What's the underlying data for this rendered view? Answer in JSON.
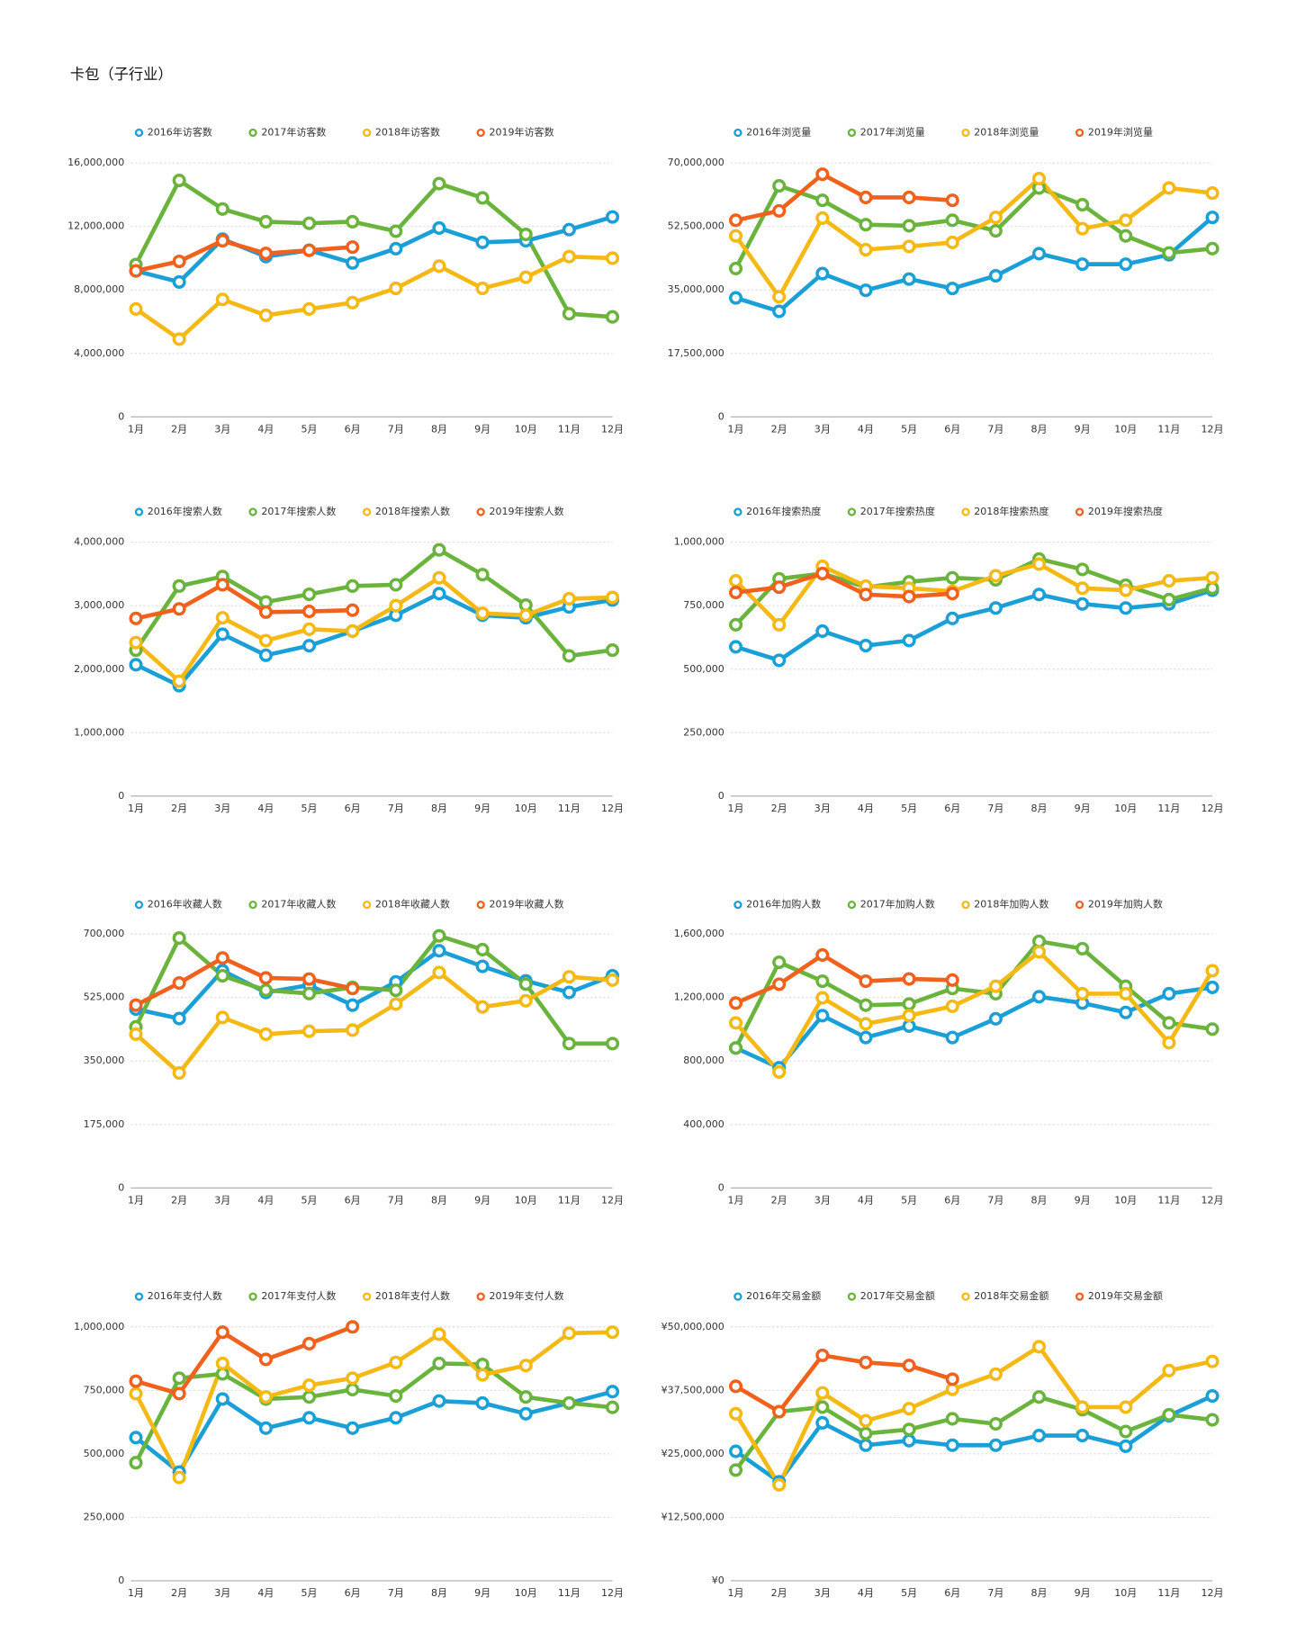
{
  "title": "卡包（子行业）",
  "chart_data": [
    {
      "type": "line",
      "categories": [
        "1月",
        "2月",
        "3月",
        "4月",
        "5月",
        "6月",
        "7月",
        "8月",
        "9月",
        "10月",
        "11月",
        "12月"
      ],
      "ylim": [
        0,
        16000000
      ],
      "yticks": [
        0,
        {
          "value": 4000000,
          "label": "4,000,000"
        },
        {
          "value": 8000000,
          "label": "8,000,000"
        },
        {
          "value": 12000000,
          "label": "12,000,000"
        },
        {
          "value": 16000000,
          "label": "16,000,000"
        }
      ],
      "grid": true,
      "series": [
        {
          "name": "2016年访客数",
          "color": "#1a9fd6",
          "values": [
            9200000,
            8500000,
            11200000,
            10100000,
            10500000,
            9700000,
            10600000,
            11900000,
            11000000,
            11100000,
            11800000,
            12600000
          ]
        },
        {
          "name": "2017年访客数",
          "color": "#6ab43e",
          "values": [
            9600000,
            14900000,
            13100000,
            12300000,
            12200000,
            12300000,
            11700000,
            14700000,
            13800000,
            11500000,
            6500000,
            6300000
          ]
        },
        {
          "name": "2018年访客数",
          "color": "#f5b915",
          "values": [
            6800000,
            4900000,
            7400000,
            6400000,
            6800000,
            7200000,
            8100000,
            9500000,
            8100000,
            8800000,
            10100000,
            10000000
          ]
        },
        {
          "name": "2019年访客数",
          "color": "#f0611e",
          "values": [
            9200000,
            9800000,
            11100000,
            10300000,
            10500000,
            10700000,
            null,
            null,
            null,
            null,
            null,
            null
          ]
        }
      ]
    },
    {
      "type": "line",
      "categories": [
        "1月",
        "2月",
        "3月",
        "4月",
        "5月",
        "6月",
        "7月",
        "8月",
        "9月",
        "10月",
        "11月",
        "12月"
      ],
      "ylim": [
        0,
        70000000
      ],
      "yticks": [
        0,
        {
          "value": 17500000,
          "label": "17,500,000"
        },
        {
          "value": 35000000,
          "label": "35,000,000"
        },
        {
          "value": 52500000,
          "label": "52,500,000"
        },
        {
          "value": 70000000,
          "label": "70,000,000"
        }
      ],
      "grid": true,
      "series": [
        {
          "name": "2016年浏览量",
          "color": "#1a9fd6",
          "values": [
            32800000,
            29100000,
            39500000,
            34900000,
            38000000,
            35400000,
            38900000,
            45000000,
            42100000,
            42100000,
            44700000,
            55000000
          ]
        },
        {
          "name": "2017年浏览量",
          "color": "#6ab43e",
          "values": [
            40900000,
            63700000,
            59700000,
            53000000,
            52700000,
            54200000,
            51300000,
            63100000,
            58500000,
            49900000,
            45200000,
            46400000
          ]
        },
        {
          "name": "2018年浏览量",
          "color": "#f5b915",
          "values": [
            49900000,
            33100000,
            54800000,
            46100000,
            47000000,
            48100000,
            55000000,
            65700000,
            51900000,
            54200000,
            63100000,
            61700000
          ]
        },
        {
          "name": "2019年浏览量",
          "color": "#f0611e",
          "values": [
            54200000,
            56800000,
            66900000,
            60500000,
            60500000,
            59700000,
            null,
            null,
            null,
            null,
            null,
            null
          ]
        }
      ]
    },
    {
      "type": "line",
      "categories": [
        "1月",
        "2月",
        "3月",
        "4月",
        "5月",
        "6月",
        "7月",
        "8月",
        "9月",
        "10月",
        "11月",
        "12月"
      ],
      "ylim": [
        0,
        4000000
      ],
      "yticks": [
        0,
        {
          "value": 1000000,
          "label": "1,000,000"
        },
        {
          "value": 2000000,
          "label": "2,000,000"
        },
        {
          "value": 3000000,
          "label": "3,000,000"
        },
        {
          "value": 4000000,
          "label": "4,000,000"
        }
      ],
      "grid": true,
      "series": [
        {
          "name": "2016年搜索人数",
          "color": "#1a9fd6",
          "values": [
            2070000,
            1740000,
            2550000,
            2220000,
            2370000,
            2600000,
            2850000,
            3190000,
            2850000,
            2810000,
            2980000,
            3090000
          ]
        },
        {
          "name": "2017年搜索人数",
          "color": "#6ab43e",
          "values": [
            2300000,
            3310000,
            3460000,
            3060000,
            3180000,
            3310000,
            3330000,
            3880000,
            3490000,
            3010000,
            2210000,
            2300000
          ]
        },
        {
          "name": "2018年搜索人数",
          "color": "#f5b915",
          "values": [
            2420000,
            1810000,
            2810000,
            2450000,
            2630000,
            2600000,
            3000000,
            3440000,
            2880000,
            2850000,
            3110000,
            3130000
          ]
        },
        {
          "name": "2019年搜索人数",
          "color": "#f0611e",
          "values": [
            2800000,
            2950000,
            3330000,
            2900000,
            2910000,
            2930000,
            null,
            null,
            null,
            null,
            null,
            null
          ]
        }
      ]
    },
    {
      "type": "line",
      "categories": [
        "1月",
        "2月",
        "3月",
        "4月",
        "5月",
        "6月",
        "7月",
        "8月",
        "9月",
        "10月",
        "11月",
        "12月"
      ],
      "ylim": [
        0,
        1000000
      ],
      "yticks": [
        0,
        {
          "value": 250000,
          "label": "250,000"
        },
        {
          "value": 500000,
          "label": "500,000"
        },
        {
          "value": 750000,
          "label": "750,000"
        },
        {
          "value": 1000000,
          "label": "1,000,000"
        }
      ],
      "grid": true,
      "series": [
        {
          "name": "2016年搜索热度",
          "color": "#1a9fd6",
          "values": [
            588000,
            535000,
            650000,
            593000,
            613000,
            700000,
            741000,
            794000,
            757000,
            741000,
            757000,
            811000
          ]
        },
        {
          "name": "2017年搜索热度",
          "color": "#6ab43e",
          "values": [
            675000,
            856000,
            877000,
            823000,
            844000,
            860000,
            852000,
            934000,
            893000,
            831000,
            774000,
            819000
          ]
        },
        {
          "name": "2018年搜索热度",
          "color": "#f5b915",
          "values": [
            848000,
            675000,
            905000,
            827000,
            819000,
            807000,
            868000,
            914000,
            819000,
            811000,
            848000,
            860000
          ]
        },
        {
          "name": "2019年搜索热度",
          "color": "#f0611e",
          "values": [
            802000,
            823000,
            877000,
            794000,
            786000,
            798000,
            null,
            null,
            null,
            null,
            null,
            null
          ]
        }
      ]
    },
    {
      "type": "line",
      "categories": [
        "1月",
        "2月",
        "3月",
        "4月",
        "5月",
        "6月",
        "7月",
        "8月",
        "9月",
        "10月",
        "11月",
        "12月"
      ],
      "ylim": [
        0,
        700000
      ],
      "yticks": [
        0,
        {
          "value": 175000,
          "label": "175,000"
        },
        {
          "value": 350000,
          "label": "350,000"
        },
        {
          "value": 525000,
          "label": "525,000"
        },
        {
          "value": 700000,
          "label": "700,000"
        }
      ],
      "grid": true,
      "series": [
        {
          "name": "2016年收藏人数",
          "color": "#1a9fd6",
          "values": [
            493000,
            467000,
            599000,
            539000,
            559000,
            504000,
            568000,
            654000,
            611000,
            571000,
            539000,
            585000
          ]
        },
        {
          "name": "2017年收藏人数",
          "color": "#6ab43e",
          "values": [
            444000,
            689000,
            585000,
            545000,
            536000,
            553000,
            545000,
            695000,
            657000,
            562000,
            398000,
            398000
          ]
        },
        {
          "name": "2018年收藏人数",
          "color": "#f5b915",
          "values": [
            424000,
            317000,
            470000,
            424000,
            432000,
            435000,
            507000,
            594000,
            499000,
            516000,
            582000,
            573000
          ]
        },
        {
          "name": "2019年收藏人数",
          "color": "#f0611e",
          "values": [
            504000,
            565000,
            634000,
            579000,
            576000,
            550000,
            null,
            null,
            null,
            null,
            null,
            null
          ]
        }
      ]
    },
    {
      "type": "line",
      "categories": [
        "1月",
        "2月",
        "3月",
        "4月",
        "5月",
        "6月",
        "7月",
        "8月",
        "9月",
        "10月",
        "11月",
        "12月"
      ],
      "ylim": [
        0,
        1600000
      ],
      "yticks": [
        0,
        {
          "value": 400000,
          "label": "400,000"
        },
        {
          "value": 800000,
          "label": "800,000"
        },
        {
          "value": 1200000,
          "label": "1,200,000"
        },
        {
          "value": 1600000,
          "label": "1,600,000"
        }
      ],
      "grid": true,
      "series": [
        {
          "name": "2016年加购人数",
          "color": "#1a9fd6",
          "values": [
            882000,
            757000,
            1086000,
            948000,
            1020000,
            948000,
            1066000,
            1205000,
            1165000,
            1106000,
            1224000,
            1264000
          ]
        },
        {
          "name": "2017年加购人数",
          "color": "#6ab43e",
          "values": [
            882000,
            1422000,
            1303000,
            1152000,
            1159000,
            1257000,
            1224000,
            1554000,
            1508000,
            1271000,
            1040000,
            1001000
          ]
        },
        {
          "name": "2018年加购人数",
          "color": "#f5b915",
          "values": [
            1040000,
            731000,
            1198000,
            1034000,
            1086000,
            1145000,
            1271000,
            1488000,
            1224000,
            1224000,
            915000,
            1369000
          ]
        },
        {
          "name": "2019年加购人数",
          "color": "#f0611e",
          "values": [
            1165000,
            1284000,
            1468000,
            1303000,
            1317000,
            1310000,
            null,
            null,
            null,
            null,
            null,
            null
          ]
        }
      ]
    },
    {
      "type": "line",
      "categories": [
        "1月",
        "2月",
        "3月",
        "4月",
        "5月",
        "6月",
        "7月",
        "8月",
        "9月",
        "10月",
        "11月",
        "12月"
      ],
      "ylim": [
        0,
        1000000
      ],
      "yticks": [
        0,
        {
          "value": 250000,
          "label": "250,000"
        },
        {
          "value": 500000,
          "label": "500,000"
        },
        {
          "value": 750000,
          "label": "750,000"
        },
        {
          "value": 1000000,
          "label": "1,000,000"
        }
      ],
      "grid": true,
      "series": [
        {
          "name": "2016年支付人数",
          "color": "#1a9fd6",
          "values": [
            564000,
            428000,
            716000,
            601000,
            642000,
            601000,
            642000,
            708000,
            700000,
            658000,
            700000,
            745000
          ]
        },
        {
          "name": "2017年支付人数",
          "color": "#6ab43e",
          "values": [
            465000,
            798000,
            815000,
            716000,
            724000,
            753000,
            728000,
            856000,
            852000,
            724000,
            700000,
            683000
          ]
        },
        {
          "name": "2018年支付人数",
          "color": "#f5b915",
          "values": [
            737000,
            407000,
            856000,
            724000,
            770000,
            798000,
            860000,
            971000,
            811000,
            848000,
            975000,
            979000
          ]
        },
        {
          "name": "2019年支付人数",
          "color": "#f0611e",
          "values": [
            786000,
            737000,
            979000,
            872000,
            934000,
            1000000,
            null,
            null,
            null,
            null,
            null,
            null
          ]
        }
      ]
    },
    {
      "type": "line",
      "categories": [
        "1月",
        "2月",
        "3月",
        "4月",
        "5月",
        "6月",
        "7月",
        "8月",
        "9月",
        "10月",
        "11月",
        "12月"
      ],
      "ylim": [
        0,
        50000000
      ],
      "yticks": [
        {
          "value": 0,
          "label": "¥0"
        },
        {
          "value": 12500000,
          "label": "¥12,500,000"
        },
        {
          "value": 25000000,
          "label": "¥25,000,000"
        },
        {
          "value": 37500000,
          "label": "¥37,500,000"
        },
        {
          "value": 50000000,
          "label": "¥50,000,000"
        }
      ],
      "grid": true,
      "series": [
        {
          "name": "2016年交易金额",
          "color": "#1a9fd6",
          "values": [
            25500000,
            19500000,
            31100000,
            26700000,
            27600000,
            26700000,
            26700000,
            28600000,
            28600000,
            26500000,
            32500000,
            36400000
          ]
        },
        {
          "name": "2017年交易金额",
          "color": "#6ab43e",
          "values": [
            21800000,
            33300000,
            34200000,
            29000000,
            29800000,
            31900000,
            30900000,
            36200000,
            33700000,
            29400000,
            32700000,
            31700000
          ]
        },
        {
          "name": "2018年交易金额",
          "color": "#f5b915",
          "values": [
            32900000,
            18900000,
            37000000,
            31500000,
            33900000,
            37700000,
            40700000,
            46100000,
            34200000,
            34200000,
            41400000,
            43200000
          ]
        },
        {
          "name": "2019年交易金额",
          "color": "#f0611e",
          "values": [
            38300000,
            33300000,
            44400000,
            43000000,
            42400000,
            39700000,
            null,
            null,
            null,
            null,
            null,
            null
          ]
        }
      ]
    }
  ]
}
